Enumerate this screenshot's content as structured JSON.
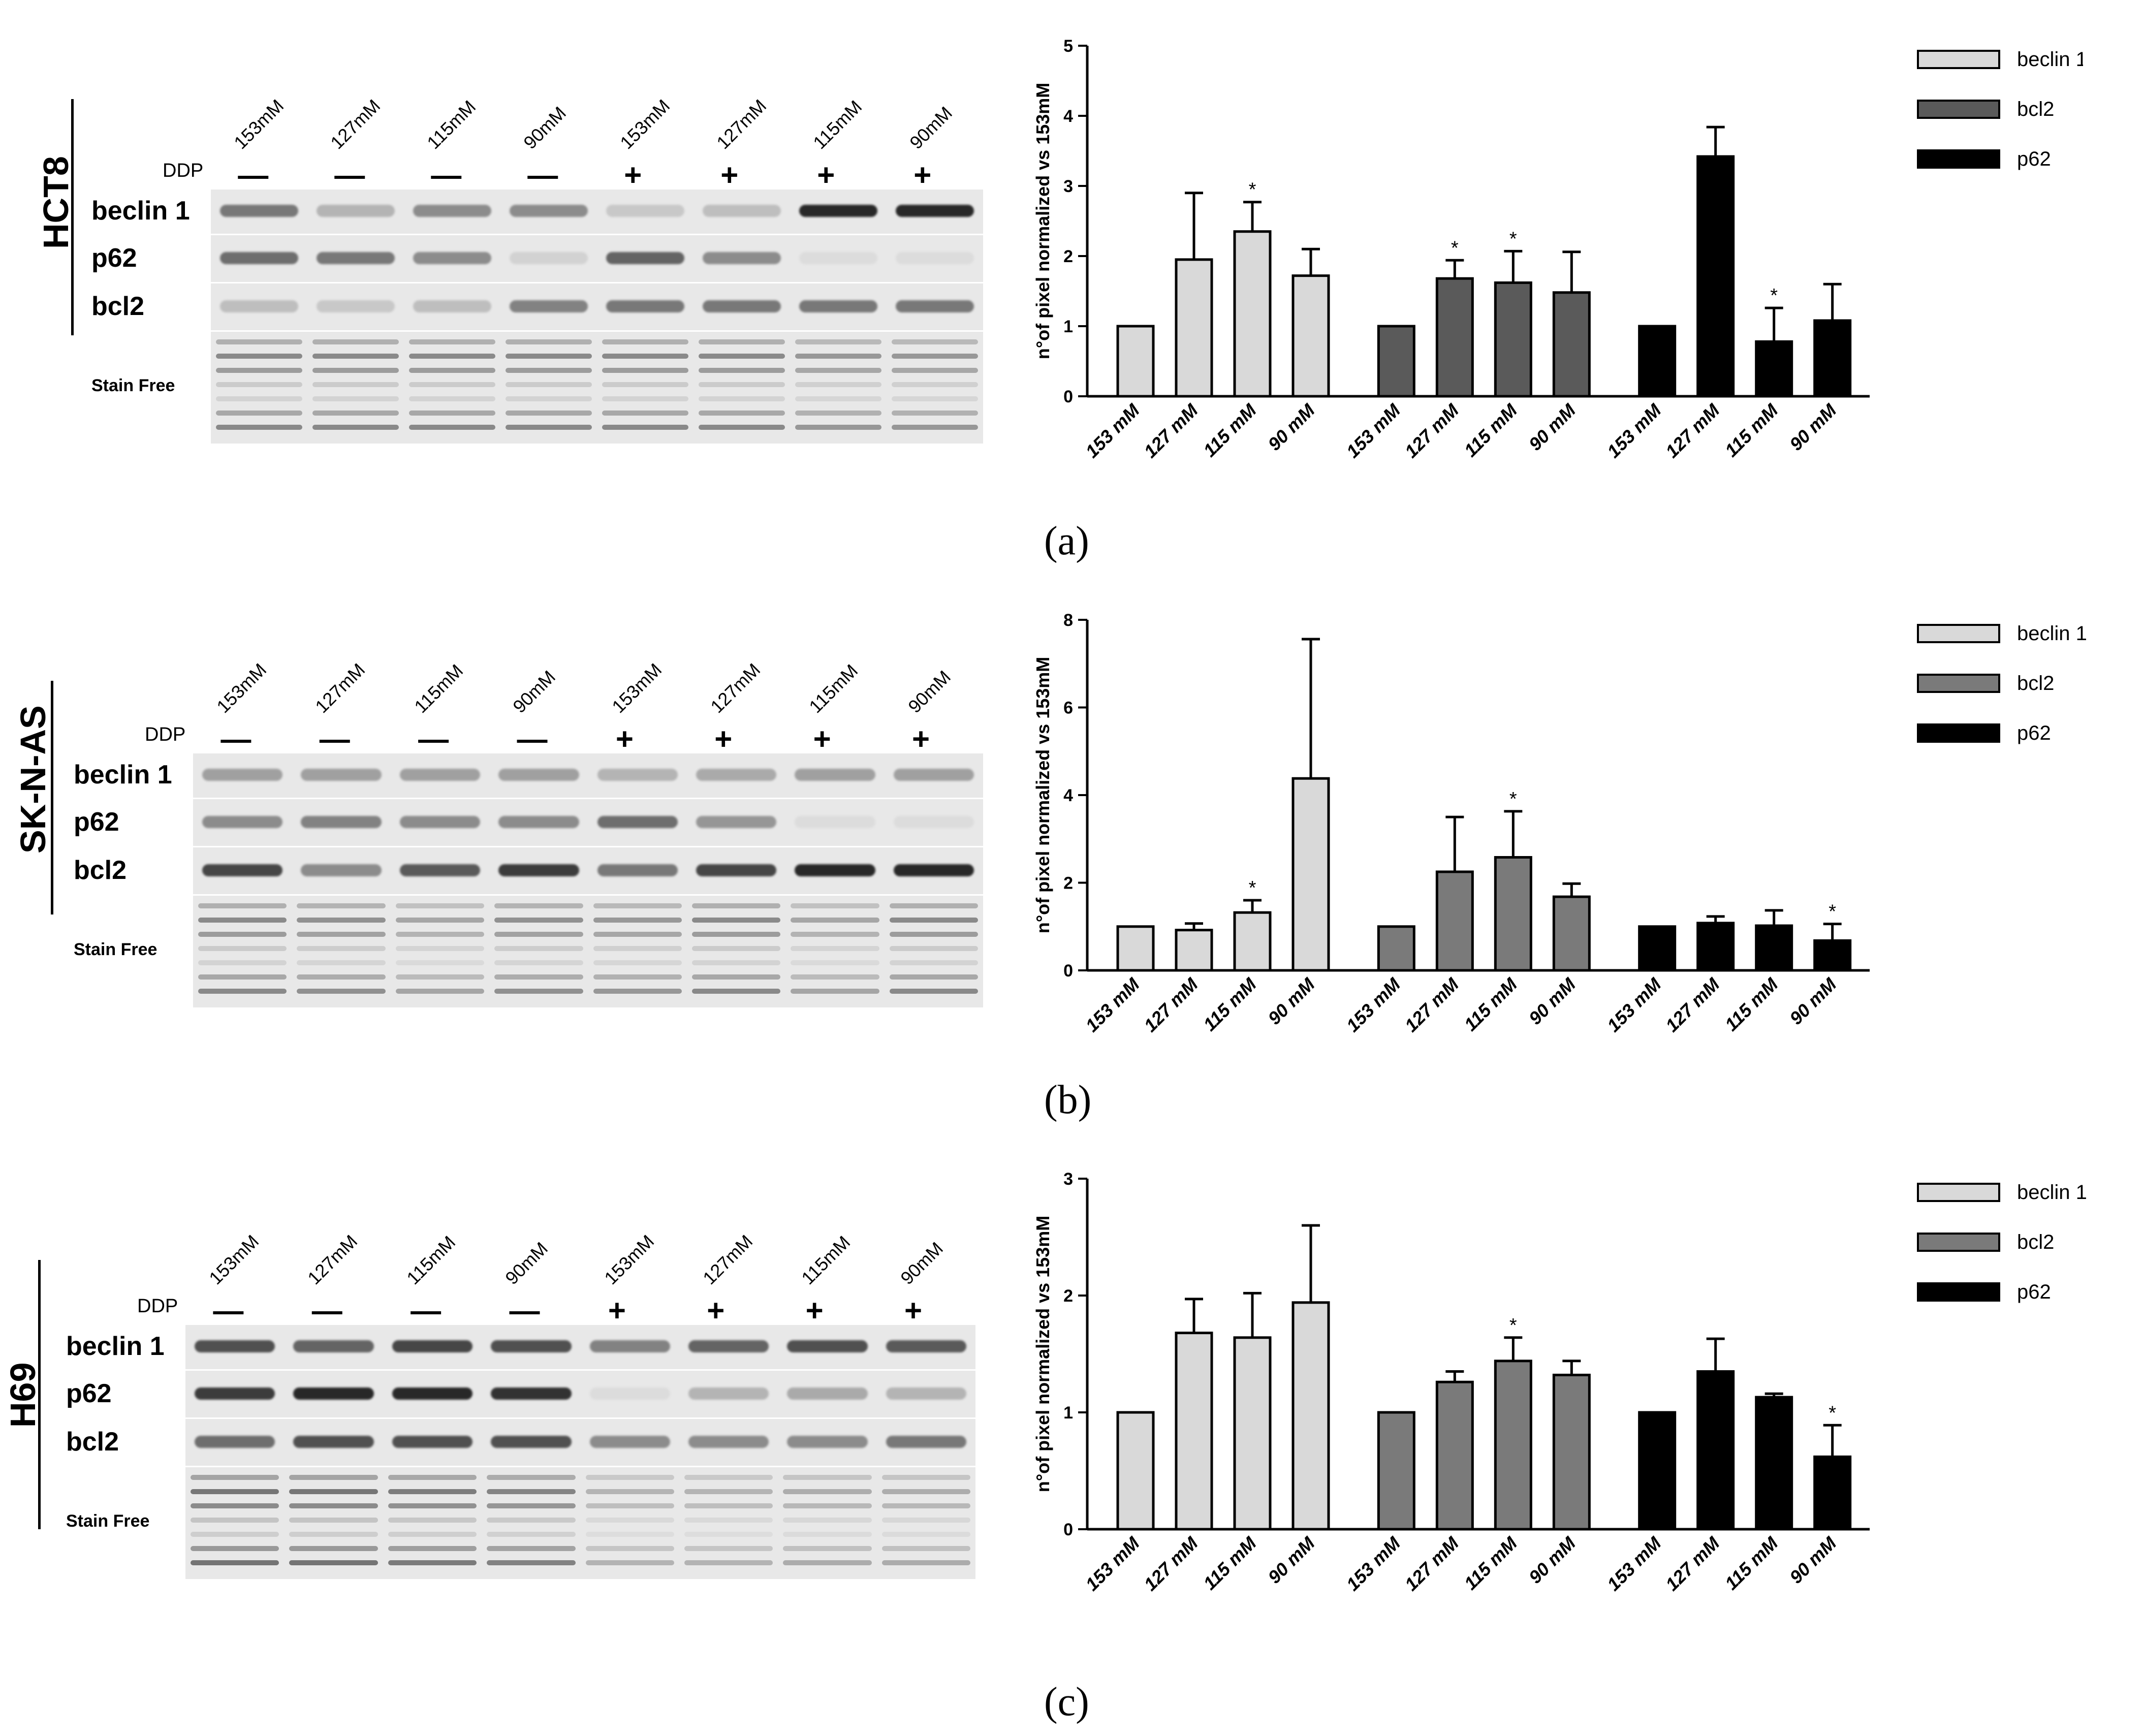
{
  "blots": [
    {
      "cell_line": "HCT8",
      "ddp_label": "DDP",
      "lane_labels": [
        "153mM",
        "127mM",
        "115mM",
        "90mM",
        "153mM",
        "127mM",
        "115mM",
        "90mM"
      ],
      "lane_signs": [
        "—",
        "—",
        "—",
        "—",
        "+",
        "+",
        "+",
        "+"
      ],
      "rows": [
        {
          "label": "beclin 1",
          "bands": [
            0.55,
            0.25,
            0.45,
            0.45,
            0.15,
            0.2,
            0.95,
            0.95
          ]
        },
        {
          "label": "p62",
          "bands": [
            0.6,
            0.55,
            0.45,
            0.1,
            0.65,
            0.45,
            0.05,
            0.05
          ]
        },
        {
          "label": "bcl2",
          "bands": [
            0.2,
            0.15,
            0.2,
            0.5,
            0.55,
            0.55,
            0.55,
            0.55
          ]
        },
        {
          "label": "Stain Free",
          "bands": [
            0.7,
            0.7,
            0.7,
            0.7,
            0.7,
            0.7,
            0.6,
            0.6
          ]
        }
      ]
    },
    {
      "cell_line": "SK-N-AS",
      "ddp_label": "DDP",
      "lane_labels": [
        "153mM",
        "127mM",
        "115mM",
        "90mM",
        "153mM",
        "127mM",
        "115mM",
        "90mM"
      ],
      "lane_signs": [
        "—",
        "—",
        "—",
        "—",
        "+",
        "+",
        "+",
        "+"
      ],
      "rows": [
        {
          "label": "beclin 1",
          "bands": [
            0.35,
            0.35,
            0.35,
            0.35,
            0.25,
            0.3,
            0.35,
            0.35
          ]
        },
        {
          "label": "p62",
          "bands": [
            0.45,
            0.5,
            0.45,
            0.45,
            0.6,
            0.4,
            0.05,
            0.05
          ]
        },
        {
          "label": "bcl2",
          "bands": [
            0.8,
            0.45,
            0.7,
            0.85,
            0.55,
            0.8,
            0.95,
            0.95
          ]
        },
        {
          "label": "Stain Free",
          "bands": [
            0.7,
            0.65,
            0.5,
            0.65,
            0.6,
            0.7,
            0.5,
            0.7
          ]
        }
      ]
    },
    {
      "cell_line": "H69",
      "ddp_label": "DDP",
      "lane_labels": [
        "153mM",
        "127mM",
        "115mM",
        "90mM",
        "153mM",
        "127mM",
        "115mM",
        "90mM"
      ],
      "lane_signs": [
        "—",
        "—",
        "—",
        "—",
        "+",
        "+",
        "+",
        "+"
      ],
      "rows": [
        {
          "label": "beclin 1",
          "bands": [
            0.75,
            0.65,
            0.8,
            0.75,
            0.5,
            0.65,
            0.75,
            0.7
          ]
        },
        {
          "label": "p62",
          "bands": [
            0.85,
            0.95,
            0.95,
            0.9,
            0.05,
            0.25,
            0.3,
            0.25
          ]
        },
        {
          "label": "bcl2",
          "bands": [
            0.6,
            0.75,
            0.75,
            0.75,
            0.45,
            0.45,
            0.45,
            0.55
          ]
        },
        {
          "label": "Stain Free",
          "bands": [
            0.85,
            0.85,
            0.8,
            0.75,
            0.4,
            0.4,
            0.45,
            0.45
          ]
        }
      ]
    }
  ],
  "panel_letters": [
    "(a)",
    "(b)",
    "(c)"
  ],
  "chart_data": [
    {
      "type": "bar",
      "ylabel": "n°of pixel normalized vs 153mM",
      "ylim": [
        0,
        5
      ],
      "yticks": [
        0,
        1,
        2,
        3,
        4,
        5
      ],
      "categories": [
        "153 mM",
        "127 mM",
        "115 mM",
        "90 mM"
      ],
      "legend_position": "top-right",
      "series": [
        {
          "name": "beclin 1",
          "color": "#d9d9d9",
          "values": [
            1.0,
            1.95,
            2.35,
            1.72
          ],
          "errors": [
            0,
            0.95,
            0.42,
            0.38
          ],
          "significant": [
            false,
            false,
            true,
            false
          ]
        },
        {
          "name": "bcl2",
          "color": "#5a5a5a",
          "values": [
            1.0,
            1.68,
            1.62,
            1.48
          ],
          "errors": [
            0,
            0.26,
            0.45,
            0.58
          ],
          "significant": [
            false,
            true,
            true,
            false
          ]
        },
        {
          "name": "p62",
          "color": "#000000",
          "values": [
            1.0,
            3.42,
            0.78,
            1.08
          ],
          "errors": [
            0,
            0.42,
            0.48,
            0.52
          ],
          "significant": [
            false,
            false,
            true,
            false
          ]
        }
      ],
      "star_label": "*"
    },
    {
      "type": "bar",
      "ylabel": "n°of pixel normalized vs 153mM",
      "ylim": [
        0,
        8
      ],
      "yticks": [
        0,
        2,
        4,
        6,
        8
      ],
      "categories": [
        "153 mM",
        "127 mM",
        "115 mM",
        "90 mM"
      ],
      "legend_position": "top-right",
      "series": [
        {
          "name": "beclin 1",
          "color": "#d9d9d9",
          "values": [
            1.0,
            0.92,
            1.32,
            4.38
          ],
          "errors": [
            0,
            0.15,
            0.28,
            3.18
          ],
          "significant": [
            false,
            false,
            true,
            false
          ]
        },
        {
          "name": "bcl2",
          "color": "#7a7a7a",
          "values": [
            1.0,
            2.25,
            2.58,
            1.68
          ],
          "errors": [
            0,
            1.25,
            1.05,
            0.3
          ],
          "significant": [
            false,
            false,
            true,
            false
          ]
        },
        {
          "name": "p62",
          "color": "#000000",
          "values": [
            1.0,
            1.08,
            1.02,
            0.68
          ],
          "errors": [
            0,
            0.15,
            0.35,
            0.38
          ],
          "significant": [
            false,
            false,
            false,
            true
          ]
        }
      ],
      "star_label": "*"
    },
    {
      "type": "bar",
      "ylabel": "n°of pixel normalized vs 153mM",
      "ylim": [
        0,
        3
      ],
      "yticks": [
        0,
        1,
        2,
        3
      ],
      "categories": [
        "153 mM",
        "127 mM",
        "115 mM",
        "90 mM"
      ],
      "legend_position": "top-right",
      "series": [
        {
          "name": "beclin 1",
          "color": "#d9d9d9",
          "values": [
            1.0,
            1.68,
            1.64,
            1.94
          ],
          "errors": [
            0,
            0.29,
            0.38,
            0.66
          ],
          "significant": [
            false,
            false,
            false,
            false
          ]
        },
        {
          "name": "bcl2",
          "color": "#7a7a7a",
          "values": [
            1.0,
            1.26,
            1.44,
            1.32
          ],
          "errors": [
            0,
            0.09,
            0.2,
            0.12
          ],
          "significant": [
            false,
            false,
            true,
            false
          ]
        },
        {
          "name": "p62",
          "color": "#000000",
          "values": [
            1.0,
            1.35,
            1.13,
            0.62
          ],
          "errors": [
            0,
            0.28,
            0.03,
            0.27
          ],
          "significant": [
            false,
            false,
            false,
            true
          ]
        }
      ],
      "star_label": "*"
    }
  ]
}
